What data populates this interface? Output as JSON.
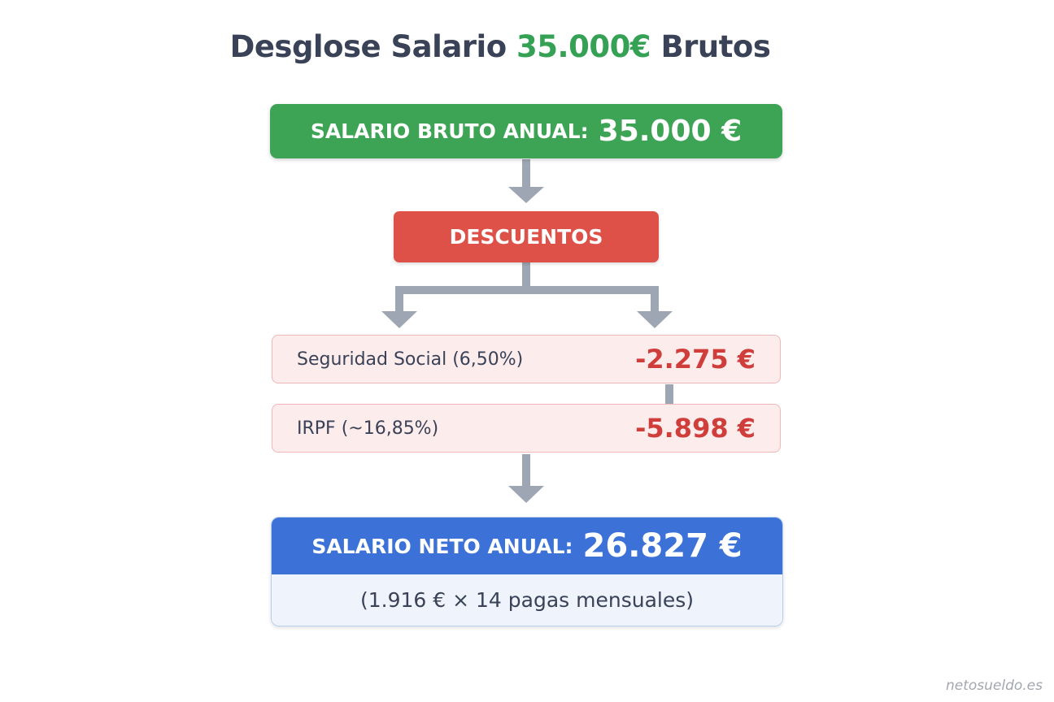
{
  "title": {
    "prefix": "Desglose Salario",
    "amount": "35.000€",
    "suffix": "Brutos"
  },
  "gross": {
    "label": "SALARIO BRUTO ANUAL:",
    "value": "35.000 €"
  },
  "deductions_header": "DESCUENTOS",
  "deductions": [
    {
      "name": "Seguridad Social (6,50%)",
      "amount": "-2.275 €"
    },
    {
      "name": "IRPF (~16,85%)",
      "amount": "-5.898 €"
    }
  ],
  "net": {
    "label": "SALARIO NETO ANUAL:",
    "value": "26.827 €",
    "detail": "(1.916 € × 14 pagas mensuales)"
  },
  "watermark": "netosueldo.es",
  "colors": {
    "gross": "#3ea455",
    "deductions": "#dd5149",
    "deduction_rows": "#fdecec",
    "net": "#3c72d8",
    "arrows": "#9ea6b4"
  }
}
